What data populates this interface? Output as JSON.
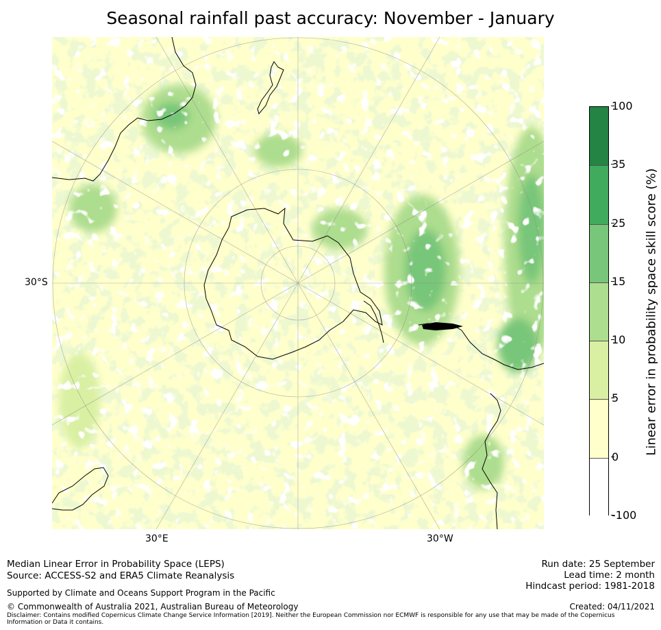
{
  "title": "Seasonal rainfall past accuracy: November - January",
  "map": {
    "projection": "south-polar stereographic",
    "labels": {
      "lat_30s": "30°S",
      "lon_30e": "30°E",
      "lon_30w": "30°W"
    },
    "colors": {
      "background": "#ffffcc",
      "low": "#d9f0a3",
      "mid": "#addd8e",
      "high": "#78c679",
      "coast": "#000000"
    }
  },
  "colorbar": {
    "label": "Linear error in probability space skill score (%)",
    "ticks": [
      "100",
      "35",
      "25",
      "15",
      "10",
      "5",
      "0",
      "-100"
    ],
    "bins": [
      {
        "from": "35",
        "to": "100",
        "color": "#238443"
      },
      {
        "from": "25",
        "to": "35",
        "color": "#41ab5d"
      },
      {
        "from": "15",
        "to": "25",
        "color": "#78c679"
      },
      {
        "from": "10",
        "to": "15",
        "color": "#addd8e"
      },
      {
        "from": "5",
        "to": "10",
        "color": "#d9f0a3"
      },
      {
        "from": "0",
        "to": "5",
        "color": "#ffffcc"
      },
      {
        "from": "-100",
        "to": "0",
        "color": "#ffffff"
      }
    ]
  },
  "footer": {
    "left": {
      "line1": "Median Linear Error in Probability Space (LEPS)",
      "line2": "Source: ACCESS-S2 and ERA5 Climate Reanalysis",
      "supported": "Supported by Climate and Oceans Support Program in the Pacific",
      "copyright": "© Commonwealth of Australia 2021, Australian Bureau of Meteorology",
      "disclaimer": "Disclaimer: Contains modified Copernicus Climate Change Service Information [2019]. Neither the European Commission nor ECMWF is responsible for any use that may be made of the Copernicus Information or Data it contains."
    },
    "right": {
      "run_date": "Run date: 25 September",
      "lead_time": "Lead time: 2 month",
      "hindcast": "Hindcast period: 1981-2018",
      "created": "Created: 04/11/2021"
    }
  }
}
